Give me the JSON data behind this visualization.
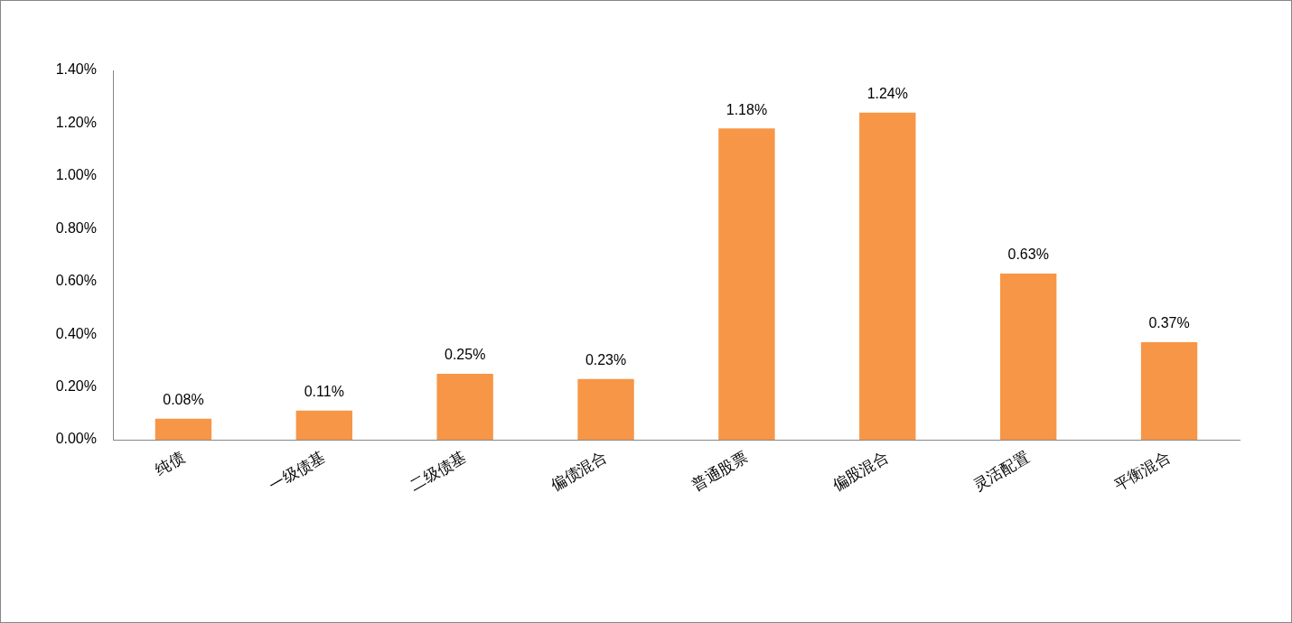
{
  "chart_data": {
    "type": "bar",
    "categories": [
      "纯债",
      "一级债基",
      "二级债基",
      "偏债混合",
      "普通股票",
      "偏股混合",
      "灵活配置",
      "平衡混合"
    ],
    "values": [
      0.08,
      0.11,
      0.25,
      0.23,
      1.18,
      1.24,
      0.63,
      0.37
    ],
    "value_labels": [
      "0.08%",
      "0.11%",
      "0.25%",
      "0.23%",
      "1.18%",
      "1.24%",
      "0.63%",
      "0.37%"
    ],
    "color": "#f79646",
    "ylim": [
      0,
      1.4
    ],
    "yticks": [
      {
        "value": 0,
        "label": "0.00%"
      },
      {
        "value": 0.2,
        "label": "0.20%"
      },
      {
        "value": 0.4,
        "label": "0.40%"
      },
      {
        "value": 0.6,
        "label": "0.60%"
      },
      {
        "value": 0.8,
        "label": "0.80%"
      },
      {
        "value": 1.0,
        "label": "1.00%"
      },
      {
        "value": 1.2,
        "label": "1.20%"
      },
      {
        "value": 1.4,
        "label": "1.40%"
      }
    ]
  }
}
